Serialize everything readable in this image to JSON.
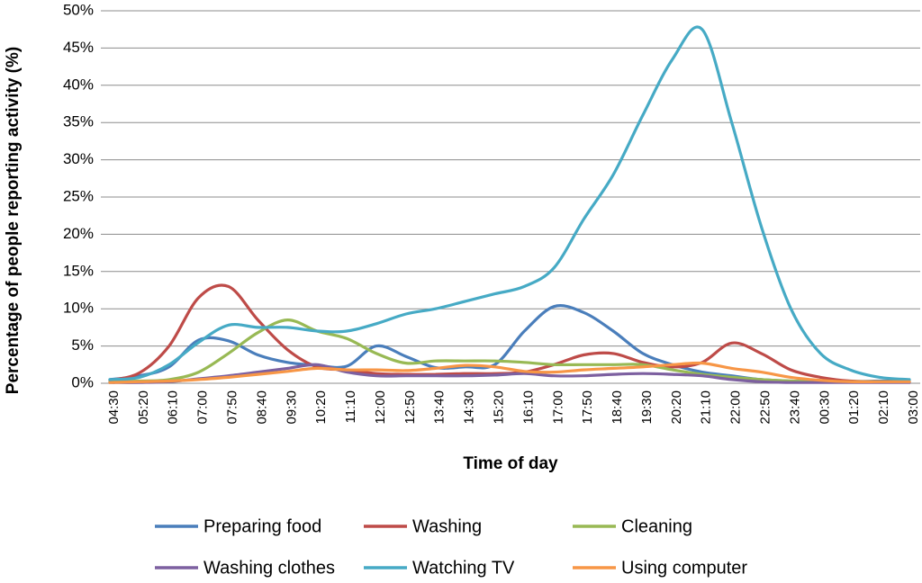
{
  "chart_data": {
    "type": "line",
    "title": "",
    "xlabel": "Time of day",
    "ylabel": "Percentage of people reporting activity (%)",
    "ylim": [
      0,
      50
    ],
    "yticks": [
      "0%",
      "5%",
      "10%",
      "15%",
      "20%",
      "25%",
      "30%",
      "35%",
      "40%",
      "45%",
      "50%"
    ],
    "grid": "horizontal",
    "legend_position": "bottom",
    "categories": [
      "04:30",
      "05:20",
      "06:10",
      "07:00",
      "07:50",
      "08:40",
      "09:30",
      "10:20",
      "11:10",
      "12:00",
      "12:50",
      "13:40",
      "14:30",
      "15:20",
      "16:10",
      "17:00",
      "17:50",
      "18:40",
      "19:30",
      "20:20",
      "21:10",
      "22:00",
      "22:50",
      "23:40",
      "00:30",
      "01:20",
      "02:10",
      "03:00"
    ],
    "series": [
      {
        "name": "Preparing food",
        "color": "#4a7ebb",
        "values": [
          0.5,
          1.0,
          2.2,
          5.8,
          5.7,
          3.8,
          2.8,
          2.4,
          2.3,
          5.0,
          3.6,
          2.1,
          2.2,
          2.5,
          7.0,
          10.3,
          9.5,
          7.0,
          4.0,
          2.5,
          1.5,
          1.0,
          0.5,
          0.3,
          0.2,
          0.2,
          0.3,
          0.3
        ]
      },
      {
        "name": "Washing",
        "color": "#be4b48",
        "values": [
          0.4,
          1.4,
          5.0,
          11.5,
          13.0,
          8.5,
          4.5,
          2.2,
          1.8,
          1.3,
          1.2,
          1.2,
          1.3,
          1.3,
          1.5,
          2.5,
          3.8,
          4.0,
          2.8,
          2.2,
          2.8,
          5.4,
          4.0,
          1.8,
          0.8,
          0.3,
          0.2,
          0.2
        ]
      },
      {
        "name": "Cleaning",
        "color": "#98b954",
        "values": [
          0.2,
          0.3,
          0.5,
          1.5,
          4.0,
          6.8,
          8.5,
          7.0,
          6.0,
          4.0,
          2.7,
          3.0,
          3.0,
          3.0,
          2.8,
          2.5,
          2.5,
          2.5,
          2.5,
          1.8,
          1.2,
          0.8,
          0.5,
          0.3,
          0.2,
          0.2,
          0.2,
          0.2
        ]
      },
      {
        "name": "Washing clothes",
        "color": "#7d60a0",
        "values": [
          0.1,
          0.1,
          0.2,
          0.6,
          1.0,
          1.5,
          2.0,
          2.5,
          1.5,
          1.0,
          1.0,
          1.0,
          1.0,
          1.1,
          1.3,
          1.0,
          1.0,
          1.2,
          1.3,
          1.2,
          1.0,
          0.5,
          0.2,
          0.1,
          0.1,
          0.1,
          0.1,
          0.1
        ]
      },
      {
        "name": "Watching TV",
        "color": "#46aac5",
        "values": [
          0.5,
          0.8,
          2.5,
          5.5,
          7.8,
          7.5,
          7.5,
          7.0,
          7.0,
          8.0,
          9.3,
          10.0,
          11.0,
          12.0,
          13.0,
          15.5,
          22.0,
          28.0,
          36.0,
          43.5,
          47.5,
          35.0,
          21.0,
          10.0,
          4.0,
          1.8,
          0.8,
          0.5
        ]
      },
      {
        "name": "Using computer",
        "color": "#f79646",
        "values": [
          0.1,
          0.2,
          0.3,
          0.5,
          0.8,
          1.2,
          1.6,
          2.0,
          1.8,
          1.8,
          1.7,
          2.0,
          2.4,
          2.2,
          1.6,
          1.5,
          1.8,
          2.0,
          2.2,
          2.5,
          2.7,
          2.0,
          1.5,
          0.8,
          0.4,
          0.2,
          0.2,
          0.2
        ]
      }
    ]
  }
}
